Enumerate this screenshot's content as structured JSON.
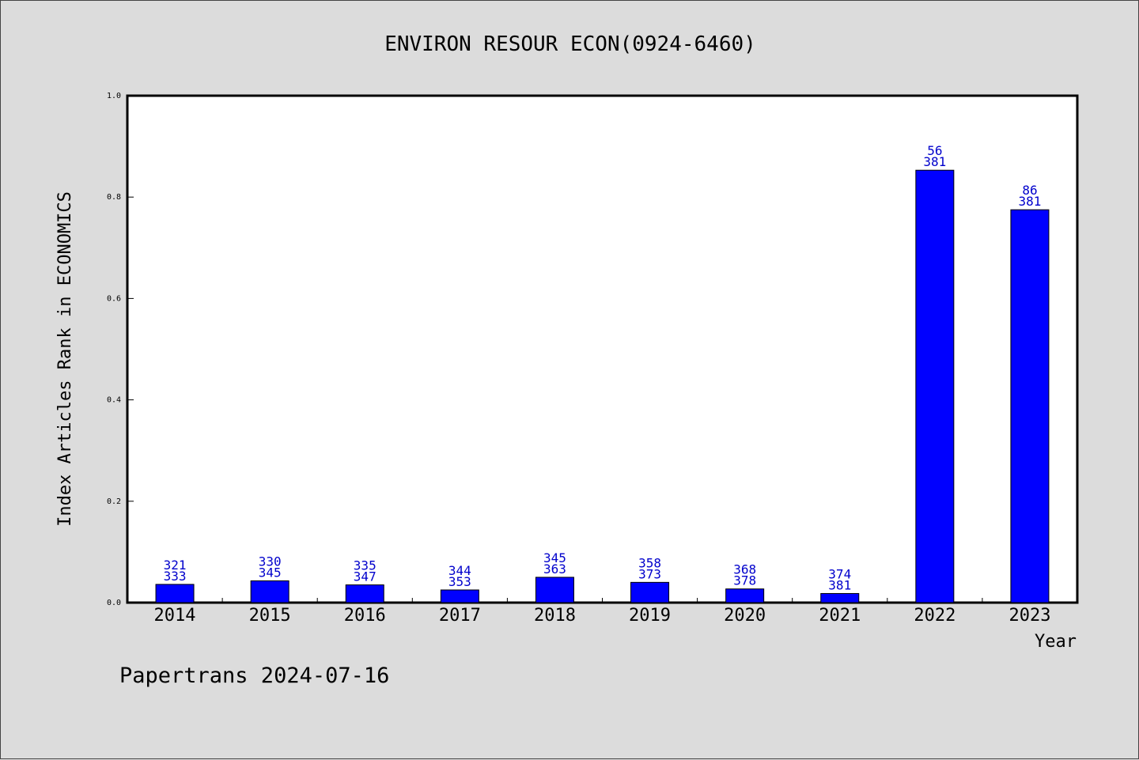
{
  "chart_data": {
    "type": "bar",
    "title": "ENVIRON RESOUR ECON(0924-6460)",
    "xlabel": "Year",
    "ylabel": "Index Articles Rank in ECONOMICS",
    "ylim": [
      0,
      1.0
    ],
    "yticks": [
      "0.0",
      "0.2",
      "0.4",
      "0.6",
      "0.8",
      "1.0"
    ],
    "categories": [
      "2014",
      "2015",
      "2016",
      "2017",
      "2018",
      "2019",
      "2020",
      "2021",
      "2022",
      "2023"
    ],
    "values": [
      0.036,
      0.043,
      0.035,
      0.025,
      0.05,
      0.04,
      0.027,
      0.018,
      0.853,
      0.775
    ],
    "rank_labels": [
      "321",
      "330",
      "335",
      "344",
      "345",
      "358",
      "368",
      "374",
      "56",
      "86"
    ],
    "total_labels": [
      "333",
      "345",
      "347",
      "353",
      "363",
      "373",
      "378",
      "381",
      "381",
      "381"
    ],
    "bar_color": "#0000ff",
    "label_color": "#0000cc",
    "grid": false,
    "legend": "none"
  },
  "footer": "Papertrans 2024-07-16"
}
